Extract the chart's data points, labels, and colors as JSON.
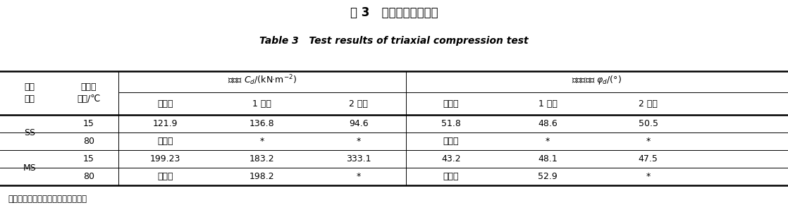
{
  "title_cn": "表 3   三轴压缩试验结果",
  "title_en": "Table 3   Test results of triaxial compression test",
  "footnote": "＊表示膨胀的原因导致试验对象毁坏",
  "group1_label": "黏着力 $C_d$/(kN·m$^{-2}$)",
  "group2_label": "内部摩擦角 $\\varphi_d$/(°)",
  "header_col1_line1": "试验",
  "header_col1_line2": "对象",
  "header_col2_line1": "恒温槽",
  "header_col2_line2": "温度/℃",
  "sub_headers": [
    "制作时",
    "1 月后",
    "2 月后",
    "制作时",
    "1 月后",
    "2 月后"
  ],
  "rows": [
    [
      "SS",
      "15",
      "121.9",
      "136.8",
      "94.6",
      "51.8",
      "48.6",
      "50.5"
    ],
    [
      "",
      "80",
      "未测定",
      "*",
      "*",
      "未测定",
      "*",
      "*"
    ],
    [
      "MS",
      "15",
      "199.23",
      "183.2",
      "333.1",
      "43.2",
      "48.1",
      "47.5"
    ],
    [
      "",
      "80",
      "未测定",
      "198.2",
      "*",
      "未测定",
      "52.9",
      "*"
    ]
  ],
  "bg_color": "#ffffff",
  "text_color": "#000000",
  "line_color": "#000000"
}
